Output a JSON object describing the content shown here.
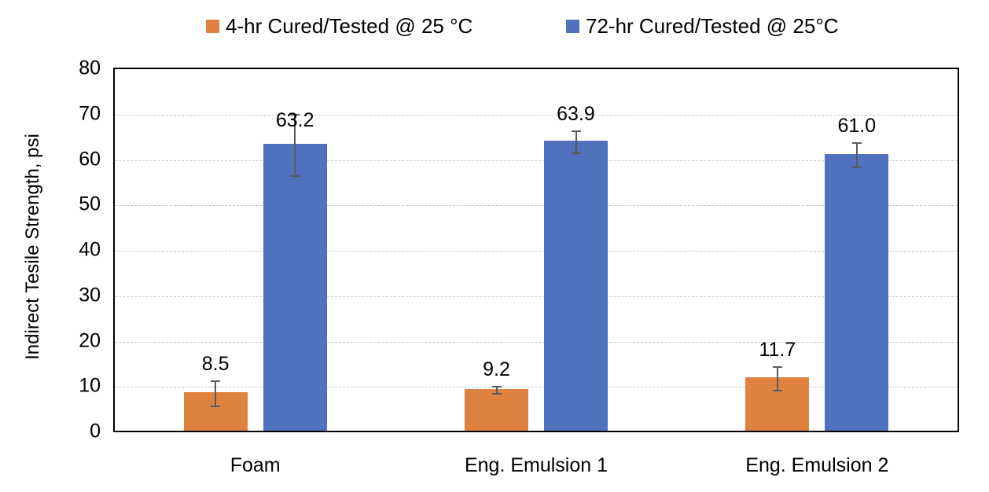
{
  "chart_data": {
    "type": "bar",
    "title": "",
    "xlabel": "",
    "ylabel": "Indirect Tesile Strength, psi",
    "ylim": [
      0,
      80
    ],
    "yticks": [
      0,
      10,
      20,
      30,
      40,
      50,
      60,
      70,
      80
    ],
    "grid": true,
    "legend_position": "top",
    "categories": [
      "Foam",
      "Eng. Emulsion 1",
      "Eng. Emulsion 2"
    ],
    "series": [
      {
        "name": "4-hr Cured/Tested @ 25 °C",
        "color": "#E0823F",
        "values": [
          8.5,
          9.2,
          11.7
        ],
        "labels": [
          "8.5",
          "9.2",
          "11.7"
        ],
        "error": [
          2.7,
          0.8,
          2.6
        ]
      },
      {
        "name": "72-hr Cured/Tested @ 25°C",
        "color": "#4F71BE",
        "values": [
          63.2,
          63.9,
          61.0
        ],
        "labels": [
          "63.2",
          "63.9",
          "61.0"
        ],
        "error": [
          6.8,
          2.5,
          2.7
        ]
      }
    ]
  }
}
